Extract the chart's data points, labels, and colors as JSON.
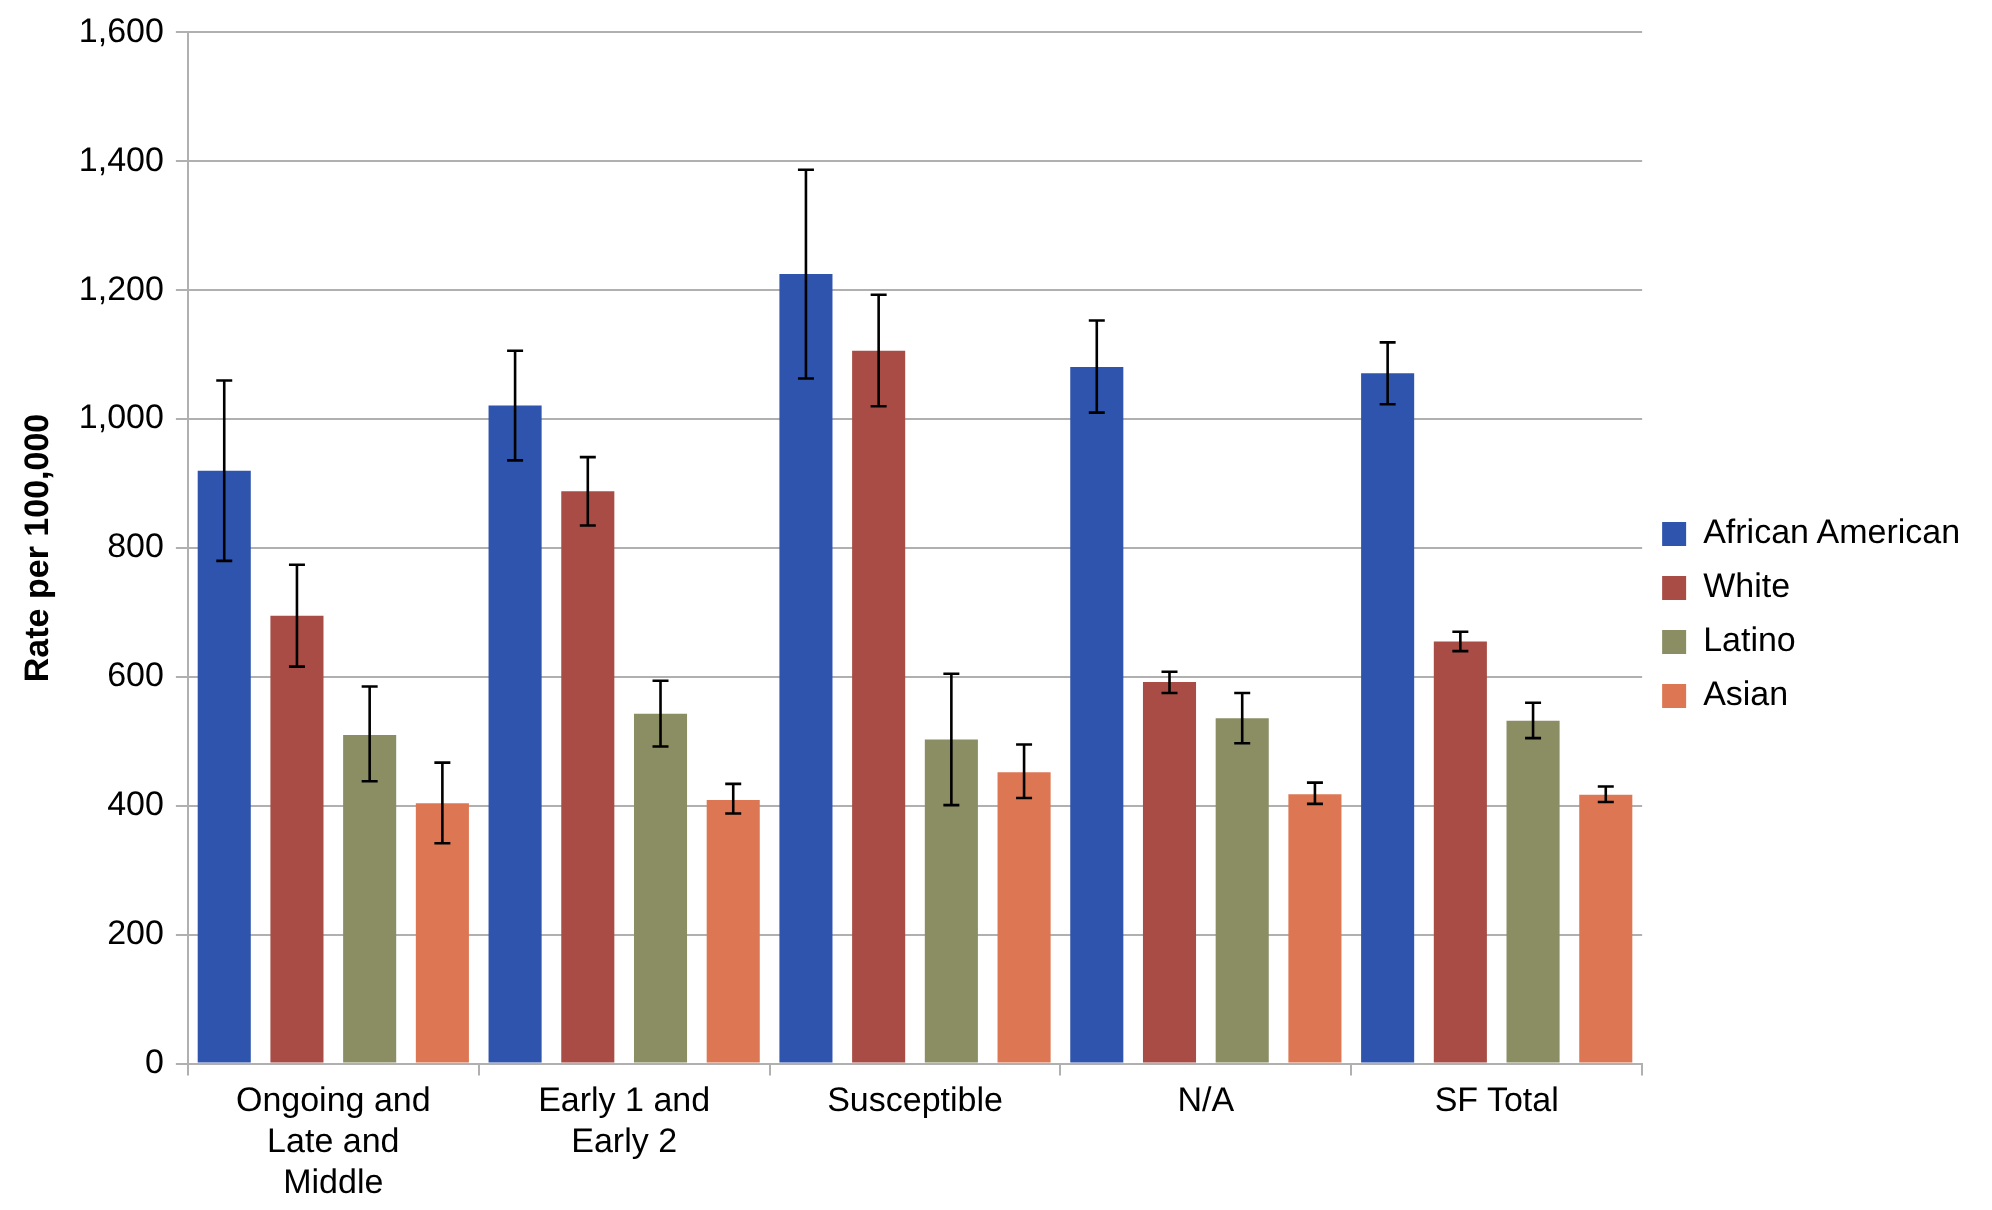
{
  "chart_data": {
    "type": "bar",
    "ylabel": "Rate per 100,000",
    "categories": [
      "Ongoing and Late and Middle",
      "Early 1 and Early 2",
      "Susceptible",
      "N/A",
      "SF Total"
    ],
    "series": [
      {
        "name": "African American",
        "color": "#2f54ad",
        "values": [
          920,
          1021,
          1225,
          1081,
          1071
        ],
        "errors": [
          [
            780,
            1060
          ],
          [
            936,
            1106
          ],
          [
            1063,
            1387
          ],
          [
            1010,
            1153
          ],
          [
            1023,
            1119
          ]
        ]
      },
      {
        "name": "White",
        "color": "#a84c45",
        "values": [
          695,
          888,
          1106,
          592,
          655
        ],
        "errors": [
          [
            616,
            774
          ],
          [
            835,
            941
          ],
          [
            1020,
            1193
          ],
          [
            575,
            608
          ],
          [
            640,
            670
          ]
        ]
      },
      {
        "name": "Latino",
        "color": "#8b8d63",
        "values": [
          510,
          543,
          503,
          536,
          532
        ],
        "errors": [
          [
            438,
            585
          ],
          [
            492,
            594
          ],
          [
            401,
            605
          ],
          [
            497,
            575
          ],
          [
            505,
            560
          ]
        ]
      },
      {
        "name": "Asian",
        "color": "#dd7753",
        "values": [
          404,
          409,
          452,
          418,
          417
        ],
        "errors": [
          [
            342,
            467
          ],
          [
            388,
            434
          ],
          [
            412,
            495
          ],
          [
            403,
            436
          ],
          [
            406,
            430
          ]
        ]
      }
    ],
    "ylim": [
      0,
      1600
    ],
    "yticks": [
      0,
      {
        "value": 200,
        "label": "200"
      },
      {
        "value": 400,
        "label": "400"
      },
      {
        "value": 600,
        "label": "600"
      },
      {
        "value": 800,
        "label": "800"
      },
      {
        "value": 1000,
        "label": "1,000"
      },
      {
        "value": 1200,
        "label": "1,200"
      },
      {
        "value": 1400,
        "label": "1,400"
      },
      {
        "value": 1600,
        "label": "1,600"
      }
    ],
    "grid": "y",
    "legend": "right"
  }
}
